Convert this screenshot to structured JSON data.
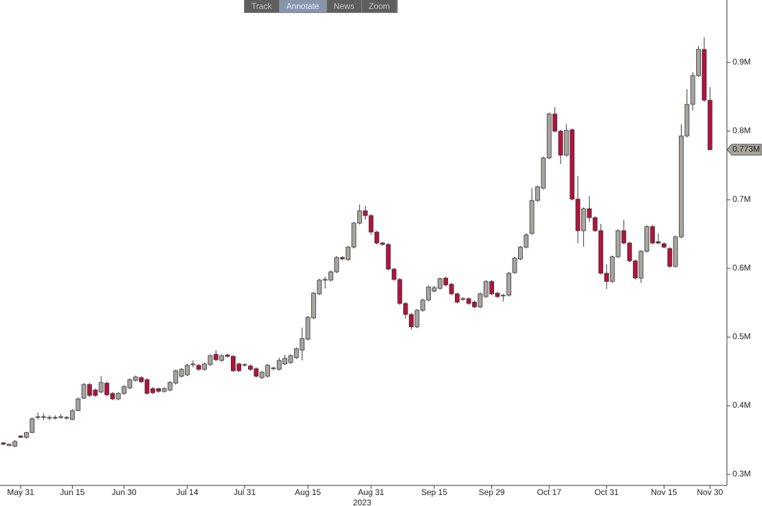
{
  "toolbar": [
    "Track",
    "Annotate",
    "News",
    "Zoom"
  ],
  "chart_data": {
    "type": "candlestick",
    "up_color": "#a8a59f",
    "down_color": "#b5123e",
    "x_group_label": "2023",
    "last_price": {
      "value": 0.773,
      "label": "0.773M"
    },
    "ylim": [
      0.284,
      0.991
    ],
    "yticks": [
      {
        "value": 0.3,
        "label": "0.3M"
      },
      {
        "value": 0.4,
        "label": "0.4M"
      },
      {
        "value": 0.5,
        "label": "0.5M"
      },
      {
        "value": 0.6,
        "label": "0.6M"
      },
      {
        "value": 0.7,
        "label": "0.7M"
      },
      {
        "value": 0.8,
        "label": "0.8M"
      },
      {
        "value": 0.9,
        "label": "0.9M"
      }
    ],
    "categories": [
      null,
      null,
      null,
      "May 31",
      null,
      null,
      null,
      null,
      null,
      null,
      null,
      null,
      "Jun 15",
      null,
      null,
      null,
      null,
      null,
      null,
      null,
      null,
      "Jun 30",
      null,
      null,
      null,
      null,
      null,
      null,
      null,
      null,
      null,
      null,
      "Jul 14",
      null,
      null,
      null,
      null,
      null,
      null,
      null,
      null,
      null,
      "Jul 31",
      null,
      null,
      null,
      null,
      null,
      null,
      null,
      null,
      null,
      null,
      "Aug 15",
      null,
      null,
      null,
      null,
      null,
      null,
      null,
      null,
      null,
      null,
      "Aug 31",
      null,
      null,
      null,
      null,
      null,
      null,
      null,
      null,
      null,
      null,
      "Sep 15",
      null,
      null,
      null,
      null,
      null,
      null,
      null,
      null,
      null,
      "Sep 29",
      null,
      null,
      null,
      null,
      null,
      null,
      null,
      null,
      null,
      "Oct 17",
      null,
      null,
      null,
      null,
      null,
      null,
      null,
      null,
      null,
      "Oct 31",
      null,
      null,
      null,
      null,
      null,
      null,
      null,
      null,
      null,
      "Nov 15",
      null,
      null,
      null,
      null,
      null,
      null,
      null,
      "Nov 30"
    ],
    "open": [
      0.346,
      0.342,
      0.341,
      0.356,
      0.354,
      0.361,
      0.383,
      0.383,
      0.382,
      0.382,
      0.383,
      0.383,
      0.38,
      0.393,
      0.411,
      0.431,
      0.423,
      0.42,
      0.433,
      0.418,
      0.41,
      0.418,
      0.426,
      0.437,
      0.441,
      0.438,
      0.425,
      0.425,
      0.421,
      0.423,
      0.433,
      0.443,
      0.445,
      0.46,
      0.459,
      0.453,
      0.46,
      0.475,
      0.466,
      0.474,
      0.472,
      0.461,
      0.459,
      0.458,
      0.454,
      0.441,
      0.443,
      0.454,
      0.453,
      0.461,
      0.463,
      0.47,
      0.481,
      0.497,
      0.528,
      0.563,
      0.583,
      0.583,
      0.595,
      0.616,
      0.613,
      0.631,
      0.666,
      0.684,
      0.677,
      0.653,
      0.637,
      0.635,
      0.599,
      0.584,
      0.549,
      0.533,
      0.515,
      0.539,
      0.554,
      0.567,
      0.571,
      0.586,
      0.577,
      0.563,
      0.555,
      0.556,
      0.551,
      0.544,
      0.559,
      0.581,
      0.564,
      0.56,
      0.561,
      0.594,
      0.614,
      0.631,
      0.651,
      0.699,
      0.717,
      0.761,
      0.825,
      0.8,
      0.765,
      0.802,
      0.701,
      0.655,
      0.687,
      0.674,
      0.655,
      0.593,
      0.581,
      0.617,
      0.655,
      0.637,
      0.611,
      0.586,
      0.625,
      0.661,
      0.639,
      0.636,
      0.629,
      0.603,
      0.646,
      0.793,
      0.839,
      0.881,
      0.919,
      0.845
    ],
    "high": [
      0.347,
      0.345,
      0.35,
      0.357,
      0.362,
      0.383,
      0.39,
      0.389,
      0.386,
      0.386,
      0.388,
      0.385,
      0.395,
      0.412,
      0.433,
      0.433,
      0.425,
      0.443,
      0.435,
      0.42,
      0.42,
      0.43,
      0.44,
      0.444,
      0.443,
      0.44,
      0.427,
      0.426,
      0.427,
      0.436,
      0.453,
      0.455,
      0.461,
      0.466,
      0.461,
      0.463,
      0.475,
      0.481,
      0.475,
      0.476,
      0.474,
      0.463,
      0.462,
      0.46,
      0.456,
      0.451,
      0.461,
      0.457,
      0.47,
      0.474,
      0.475,
      0.485,
      0.514,
      0.531,
      0.566,
      0.585,
      0.588,
      0.597,
      0.618,
      0.618,
      0.633,
      0.668,
      0.693,
      0.691,
      0.679,
      0.655,
      0.639,
      0.637,
      0.601,
      0.586,
      0.551,
      0.535,
      0.541,
      0.556,
      0.575,
      0.575,
      0.587,
      0.588,
      0.579,
      0.565,
      0.558,
      0.558,
      0.553,
      0.565,
      0.583,
      0.583,
      0.566,
      0.563,
      0.595,
      0.617,
      0.633,
      0.651,
      0.717,
      0.721,
      0.763,
      0.827,
      0.835,
      0.802,
      0.81,
      0.804,
      0.735,
      0.689,
      0.705,
      0.676,
      0.665,
      0.606,
      0.619,
      0.657,
      0.671,
      0.639,
      0.613,
      0.627,
      0.663,
      0.663,
      0.651,
      0.638,
      0.631,
      0.648,
      0.81,
      0.861,
      0.886,
      0.924,
      0.937,
      0.864
    ],
    "low": [
      0.343,
      0.341,
      0.34,
      0.353,
      0.352,
      0.36,
      0.38,
      0.379,
      0.379,
      0.38,
      0.381,
      0.38,
      0.379,
      0.392,
      0.41,
      0.413,
      0.413,
      0.418,
      0.414,
      0.408,
      0.408,
      0.416,
      0.424,
      0.435,
      0.433,
      0.416,
      0.417,
      0.419,
      0.419,
      0.421,
      0.431,
      0.441,
      0.443,
      0.456,
      0.451,
      0.451,
      0.458,
      0.465,
      0.464,
      0.47,
      0.449,
      0.449,
      0.457,
      0.451,
      0.441,
      0.439,
      0.441,
      0.452,
      0.451,
      0.459,
      0.461,
      0.468,
      0.466,
      0.495,
      0.526,
      0.561,
      0.571,
      0.581,
      0.593,
      0.612,
      0.611,
      0.629,
      0.664,
      0.671,
      0.649,
      0.635,
      0.633,
      0.597,
      0.582,
      0.547,
      0.527,
      0.511,
      0.513,
      0.537,
      0.552,
      0.565,
      0.569,
      0.574,
      0.561,
      0.549,
      0.553,
      0.547,
      0.542,
      0.542,
      0.557,
      0.561,
      0.557,
      0.552,
      0.559,
      0.592,
      0.612,
      0.629,
      0.649,
      0.697,
      0.715,
      0.759,
      0.798,
      0.752,
      0.763,
      0.699,
      0.637,
      0.632,
      0.668,
      0.653,
      0.591,
      0.57,
      0.579,
      0.615,
      0.635,
      0.609,
      0.584,
      0.579,
      0.623,
      0.635,
      0.635,
      0.629,
      0.601,
      0.601,
      0.644,
      0.791,
      0.83,
      0.879,
      0.843,
      0.772
    ],
    "close": [
      0.344,
      0.344,
      0.348,
      0.354,
      0.361,
      0.381,
      0.384,
      0.384,
      0.383,
      0.383,
      0.384,
      0.382,
      0.393,
      0.41,
      0.431,
      0.415,
      0.415,
      0.434,
      0.416,
      0.41,
      0.418,
      0.428,
      0.438,
      0.442,
      0.435,
      0.418,
      0.419,
      0.421,
      0.425,
      0.434,
      0.451,
      0.453,
      0.459,
      0.461,
      0.453,
      0.461,
      0.473,
      0.467,
      0.473,
      0.472,
      0.451,
      0.451,
      0.46,
      0.453,
      0.443,
      0.449,
      0.459,
      0.455,
      0.466,
      0.469,
      0.473,
      0.483,
      0.498,
      0.529,
      0.564,
      0.583,
      0.584,
      0.595,
      0.616,
      0.614,
      0.631,
      0.666,
      0.684,
      0.677,
      0.653,
      0.637,
      0.635,
      0.599,
      0.584,
      0.549,
      0.533,
      0.515,
      0.539,
      0.554,
      0.573,
      0.572,
      0.585,
      0.576,
      0.563,
      0.551,
      0.556,
      0.549,
      0.544,
      0.563,
      0.581,
      0.563,
      0.559,
      0.561,
      0.593,
      0.615,
      0.631,
      0.649,
      0.699,
      0.719,
      0.761,
      0.825,
      0.8,
      0.765,
      0.801,
      0.701,
      0.655,
      0.687,
      0.674,
      0.655,
      0.593,
      0.581,
      0.617,
      0.655,
      0.637,
      0.611,
      0.586,
      0.625,
      0.661,
      0.637,
      0.637,
      0.631,
      0.603,
      0.646,
      0.793,
      0.839,
      0.881,
      0.919,
      0.845,
      0.773
    ]
  }
}
